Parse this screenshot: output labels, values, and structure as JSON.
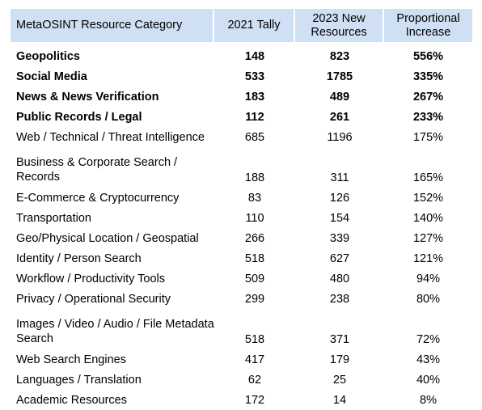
{
  "table": {
    "headers": [
      "MetaOSINT Resource Category",
      "2021 Tally",
      "2023 New Resources",
      "Proportional Increase"
    ],
    "rows": [
      {
        "category": "Geopolitics",
        "tally_2021": "148",
        "new_2023": "823",
        "increase": "556%",
        "bold": true
      },
      {
        "category": "Social Media",
        "tally_2021": "533",
        "new_2023": "1785",
        "increase": "335%",
        "bold": true
      },
      {
        "category": "News & News Verification",
        "tally_2021": "183",
        "new_2023": "489",
        "increase": "267%",
        "bold": true
      },
      {
        "category": "Public Records / Legal",
        "tally_2021": "112",
        "new_2023": "261",
        "increase": "233%",
        "bold": true
      },
      {
        "category": "Web / Technical / Threat Intelligence",
        "tally_2021": "685",
        "new_2023": "1196",
        "increase": "175%",
        "bold": false
      },
      {
        "category": "Business & Corporate Search / Records",
        "tally_2021": "188",
        "new_2023": "311",
        "increase": "165%",
        "bold": false
      },
      {
        "category": "E-Commerce & Cryptocurrency",
        "tally_2021": "83",
        "new_2023": "126",
        "increase": "152%",
        "bold": false
      },
      {
        "category": "Transportation",
        "tally_2021": "110",
        "new_2023": "154",
        "increase": "140%",
        "bold": false
      },
      {
        "category": "Geo/Physical Location / Geospatial",
        "tally_2021": "266",
        "new_2023": "339",
        "increase": "127%",
        "bold": false
      },
      {
        "category": "Identity / Person Search",
        "tally_2021": "518",
        "new_2023": "627",
        "increase": "121%",
        "bold": false
      },
      {
        "category": "Workflow / Productivity Tools",
        "tally_2021": "509",
        "new_2023": "480",
        "increase": "94%",
        "bold": false
      },
      {
        "category": "Privacy / Operational Security",
        "tally_2021": "299",
        "new_2023": "238",
        "increase": "80%",
        "bold": false
      },
      {
        "category": "Images / Video / Audio / File Metadata Search",
        "tally_2021": "518",
        "new_2023": "371",
        "increase": "72%",
        "bold": false
      },
      {
        "category": "Web Search Engines",
        "tally_2021": "417",
        "new_2023": "179",
        "increase": "43%",
        "bold": false
      },
      {
        "category": "Languages / Translation",
        "tally_2021": "62",
        "new_2023": "25",
        "increase": "40%",
        "bold": false
      },
      {
        "category": "Academic Resources",
        "tally_2021": "172",
        "new_2023": "14",
        "increase": "8%",
        "bold": false
      }
    ]
  },
  "colors": {
    "header_bg": "#cfe0f4",
    "text": "#000000",
    "background": "#ffffff"
  }
}
